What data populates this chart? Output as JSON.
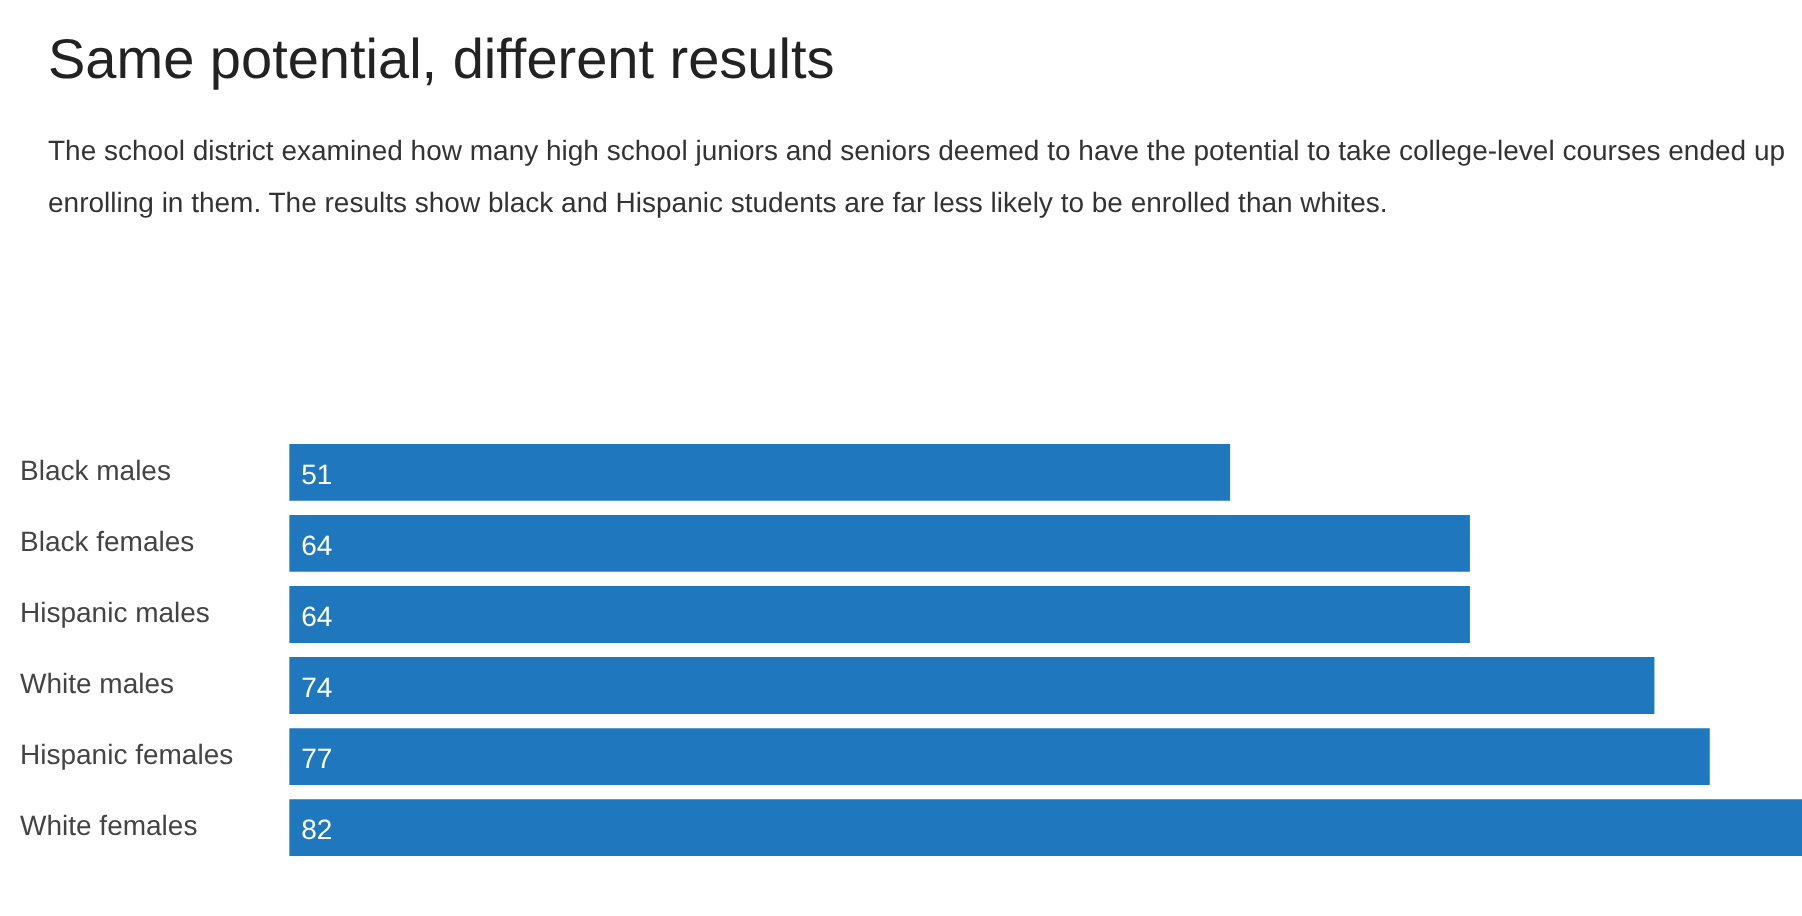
{
  "chart_data": {
    "type": "bar",
    "orientation": "horizontal",
    "title": "Same potential, different results",
    "subtitle": "The school district examined how many high school juniors and seniors deemed to have the potential to take college-level courses ended up enrolling in them. The results show black and Hispanic students are far less likely to be enrolled than whites.",
    "categories": [
      "Black males",
      "Black females",
      "Hispanic males",
      "White males",
      "Hispanic females",
      "White females"
    ],
    "values": [
      51,
      64,
      64,
      74,
      77,
      82
    ],
    "color": "#1f78bd",
    "xlim": [
      0,
      82
    ],
    "data_labels": true,
    "grid": false,
    "legend": false
  }
}
